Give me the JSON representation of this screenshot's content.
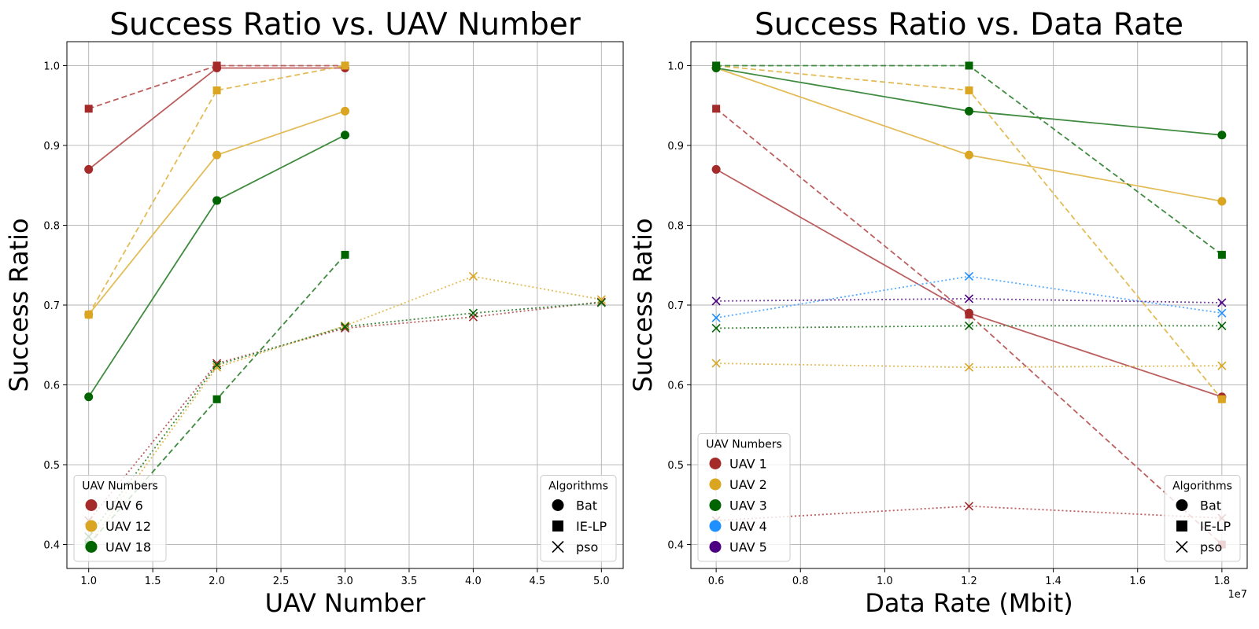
{
  "chart_data": [
    {
      "type": "line",
      "title": "Success Ratio vs. UAV Number",
      "xlabel": "UAV Number",
      "ylabel": "Success Ratio",
      "xlim": [
        0.83,
        5.17
      ],
      "ylim": [
        0.37,
        1.03
      ],
      "xticks": [
        "1.0",
        "1.5",
        "2.0",
        "2.5",
        "3.0",
        "3.5",
        "4.0",
        "4.5",
        "5.0"
      ],
      "xtick_values": [
        1.0,
        1.5,
        2.0,
        2.5,
        3.0,
        3.5,
        4.0,
        4.5,
        5.0
      ],
      "yticks": [
        "0.4",
        "0.5",
        "0.6",
        "0.7",
        "0.8",
        "0.9",
        "1.0"
      ],
      "ytick_values": [
        0.4,
        0.5,
        0.6,
        0.7,
        0.8,
        0.9,
        1.0
      ],
      "exponent_label": "",
      "grid": true,
      "series": [
        {
          "label": "UAV 6",
          "algorithm": "Bat",
          "color": "#a52a2a",
          "marker": "circle",
          "dash": "solid",
          "x": [
            1,
            2,
            3
          ],
          "y": [
            0.87,
            0.997,
            0.997
          ]
        },
        {
          "label": "UAV 6",
          "algorithm": "IE-LP",
          "color": "#a52a2a",
          "marker": "square",
          "dash": "dashed",
          "x": [
            1,
            2,
            3
          ],
          "y": [
            0.946,
            1.0,
            1.0
          ]
        },
        {
          "label": "UAV 6",
          "algorithm": "pso",
          "color": "#a52a2a",
          "marker": "x",
          "dash": "dotted",
          "x": [
            1,
            2,
            3,
            4,
            5
          ],
          "y": [
            0.43,
            0.627,
            0.671,
            0.685,
            0.704
          ]
        },
        {
          "label": "UAV 12",
          "algorithm": "Bat",
          "color": "#daa520",
          "marker": "circle",
          "dash": "solid",
          "x": [
            1,
            2,
            3
          ],
          "y": [
            0.688,
            0.888,
            0.943
          ]
        },
        {
          "label": "UAV 12",
          "algorithm": "IE-LP",
          "color": "#daa520",
          "marker": "square",
          "dash": "dashed",
          "x": [
            1,
            2,
            3
          ],
          "y": [
            0.688,
            0.969,
            1.0
          ]
        },
        {
          "label": "UAV 12",
          "algorithm": "pso",
          "color": "#daa520",
          "marker": "x",
          "dash": "dotted",
          "x": [
            1,
            2,
            3,
            4,
            5
          ],
          "y": [
            0.4,
            0.622,
            0.674,
            0.736,
            0.707
          ]
        },
        {
          "label": "UAV 18",
          "algorithm": "Bat",
          "color": "#006400",
          "marker": "circle",
          "dash": "solid",
          "x": [
            1,
            2,
            3
          ],
          "y": [
            0.585,
            0.831,
            0.913
          ]
        },
        {
          "label": "UAV 18",
          "algorithm": "IE-LP",
          "color": "#006400",
          "marker": "square",
          "dash": "dashed",
          "x": [
            1,
            2,
            3
          ],
          "y": [
            0.4,
            0.582,
            0.763
          ]
        },
        {
          "label": "UAV 18",
          "algorithm": "pso",
          "color": "#006400",
          "marker": "x",
          "dash": "dotted",
          "x": [
            1,
            2,
            3,
            4,
            5
          ],
          "y": [
            0.41,
            0.625,
            0.673,
            0.69,
            0.703
          ]
        }
      ],
      "legend_uav": {
        "title": "UAV Numbers",
        "location": "lower-left",
        "entries": [
          {
            "label": "UAV 6",
            "color": "#a52a2a"
          },
          {
            "label": "UAV 12",
            "color": "#daa520"
          },
          {
            "label": "UAV 18",
            "color": "#006400"
          }
        ]
      },
      "legend_alg": {
        "title": "Algorithms",
        "location": "lower-right",
        "entries": [
          {
            "label": "Bat",
            "marker": "circle"
          },
          {
            "label": "IE-LP",
            "marker": "square"
          },
          {
            "label": "pso",
            "marker": "x"
          }
        ]
      }
    },
    {
      "type": "line",
      "title": "Success Ratio vs. Data Rate",
      "xlabel": "Data Rate (Mbit)",
      "ylabel": "Success Ratio",
      "xlim": [
        5400000,
        18600000
      ],
      "ylim": [
        0.37,
        1.03
      ],
      "xticks": [
        "0.6",
        "0.8",
        "1.0",
        "1.2",
        "1.4",
        "1.6",
        "1.8"
      ],
      "xtick_values": [
        6000000,
        8000000,
        10000000,
        12000000,
        14000000,
        16000000,
        18000000
      ],
      "yticks": [
        "0.4",
        "0.5",
        "0.6",
        "0.7",
        "0.8",
        "0.9",
        "1.0"
      ],
      "ytick_values": [
        0.4,
        0.5,
        0.6,
        0.7,
        0.8,
        0.9,
        1.0
      ],
      "exponent_label": "1e7",
      "grid": true,
      "series": [
        {
          "label": "UAV 1",
          "algorithm": "Bat",
          "color": "#a52a2a",
          "marker": "circle",
          "dash": "solid",
          "x": [
            6000000,
            12000000,
            18000000
          ],
          "y": [
            0.87,
            0.69,
            0.585
          ]
        },
        {
          "label": "UAV 1",
          "algorithm": "IE-LP",
          "color": "#a52a2a",
          "marker": "square",
          "dash": "dashed",
          "x": [
            6000000,
            12000000,
            18000000
          ],
          "y": [
            0.946,
            0.688,
            0.4
          ]
        },
        {
          "label": "UAV 1",
          "algorithm": "pso",
          "color": "#a52a2a",
          "marker": "x",
          "dash": "dotted",
          "x": [
            6000000,
            12000000,
            18000000
          ],
          "y": [
            0.43,
            0.448,
            0.433
          ]
        },
        {
          "label": "UAV 2",
          "algorithm": "Bat",
          "color": "#daa520",
          "marker": "circle",
          "dash": "solid",
          "x": [
            6000000,
            12000000,
            18000000
          ],
          "y": [
            0.997,
            0.888,
            0.83
          ]
        },
        {
          "label": "UAV 2",
          "algorithm": "IE-LP",
          "color": "#daa520",
          "marker": "square",
          "dash": "dashed",
          "x": [
            6000000,
            12000000,
            18000000
          ],
          "y": [
            1.0,
            0.969,
            0.582
          ]
        },
        {
          "label": "UAV 2",
          "algorithm": "pso",
          "color": "#daa520",
          "marker": "x",
          "dash": "dotted",
          "x": [
            6000000,
            12000000,
            18000000
          ],
          "y": [
            0.627,
            0.622,
            0.624
          ]
        },
        {
          "label": "UAV 3",
          "algorithm": "Bat",
          "color": "#006400",
          "marker": "circle",
          "dash": "solid",
          "x": [
            6000000,
            12000000,
            18000000
          ],
          "y": [
            0.997,
            0.943,
            0.913
          ]
        },
        {
          "label": "UAV 3",
          "algorithm": "IE-LP",
          "color": "#006400",
          "marker": "square",
          "dash": "dashed",
          "x": [
            6000000,
            12000000,
            18000000
          ],
          "y": [
            1.0,
            1.0,
            0.763
          ]
        },
        {
          "label": "UAV 3",
          "algorithm": "pso",
          "color": "#006400",
          "marker": "x",
          "dash": "dotted",
          "x": [
            6000000,
            12000000,
            18000000
          ],
          "y": [
            0.671,
            0.674,
            0.674
          ]
        },
        {
          "label": "UAV 4",
          "algorithm": "pso",
          "color": "#1e90ff",
          "marker": "x",
          "dash": "dotted",
          "x": [
            6000000,
            12000000,
            18000000
          ],
          "y": [
            0.684,
            0.736,
            0.69
          ]
        },
        {
          "label": "UAV 5",
          "algorithm": "pso",
          "color": "#4b0082",
          "marker": "x",
          "dash": "dotted",
          "x": [
            6000000,
            12000000,
            18000000
          ],
          "y": [
            0.705,
            0.708,
            0.703
          ]
        }
      ],
      "legend_uav": {
        "title": "UAV Numbers",
        "location": "lower-left",
        "entries": [
          {
            "label": "UAV 1",
            "color": "#a52a2a"
          },
          {
            "label": "UAV 2",
            "color": "#daa520"
          },
          {
            "label": "UAV 3",
            "color": "#006400"
          },
          {
            "label": "UAV 4",
            "color": "#1e90ff"
          },
          {
            "label": "UAV 5",
            "color": "#4b0082"
          }
        ]
      },
      "legend_alg": {
        "title": "Algorithms",
        "location": "lower-right",
        "entries": [
          {
            "label": "Bat",
            "marker": "circle"
          },
          {
            "label": "IE-LP",
            "marker": "square"
          },
          {
            "label": "pso",
            "marker": "x"
          }
        ]
      }
    }
  ]
}
